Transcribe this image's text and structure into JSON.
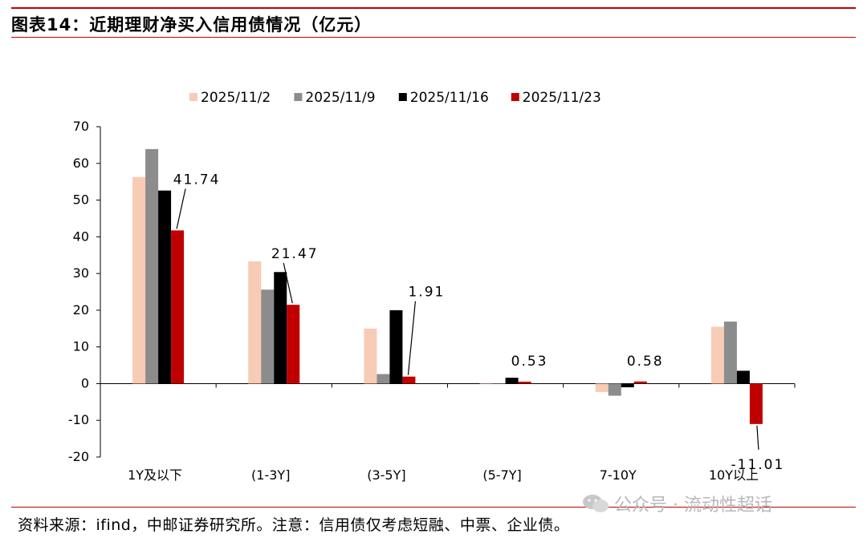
{
  "figure": {
    "title": "图表14：近期理财净买入信用债情况（亿元）",
    "source": "资料来源：ifind，中邮证券研究所。注意：信用债仅考虑短融、中票、企业债。",
    "watermark": "公众号 · 流动性超话"
  },
  "chart_data": {
    "type": "bar",
    "categories": [
      "1Y及以下",
      "(1-3Y]",
      "(3-5Y]",
      "(5-7Y]",
      "7-10Y",
      "10Y以上"
    ],
    "series": [
      {
        "name": "2025/11/2",
        "color": "#f8cbb4",
        "values": [
          56.3,
          33.3,
          15.0,
          0.0,
          -2.3,
          15.5
        ]
      },
      {
        "name": "2025/11/9",
        "color": "#8c8c8c",
        "values": [
          63.9,
          25.6,
          2.6,
          0.1,
          -3.3,
          16.9
        ]
      },
      {
        "name": "2025/11/16",
        "color": "#000000",
        "values": [
          52.6,
          30.4,
          20.0,
          1.6,
          -1.0,
          3.5
        ]
      },
      {
        "name": "2025/11/23",
        "color": "#c00000",
        "values": [
          41.74,
          21.47,
          1.91,
          0.53,
          0.58,
          -11.01
        ]
      }
    ],
    "data_labels": [
      "41.74",
      "21.47",
      "1.91",
      "0.53",
      "0.58",
      "-11.01"
    ],
    "ylim": [
      -20,
      70
    ],
    "yticks": [
      -20,
      -10,
      0,
      10,
      20,
      30,
      40,
      50,
      60,
      70
    ],
    "xlabel": "",
    "ylabel": "",
    "grid": false,
    "legend_position": "top"
  }
}
